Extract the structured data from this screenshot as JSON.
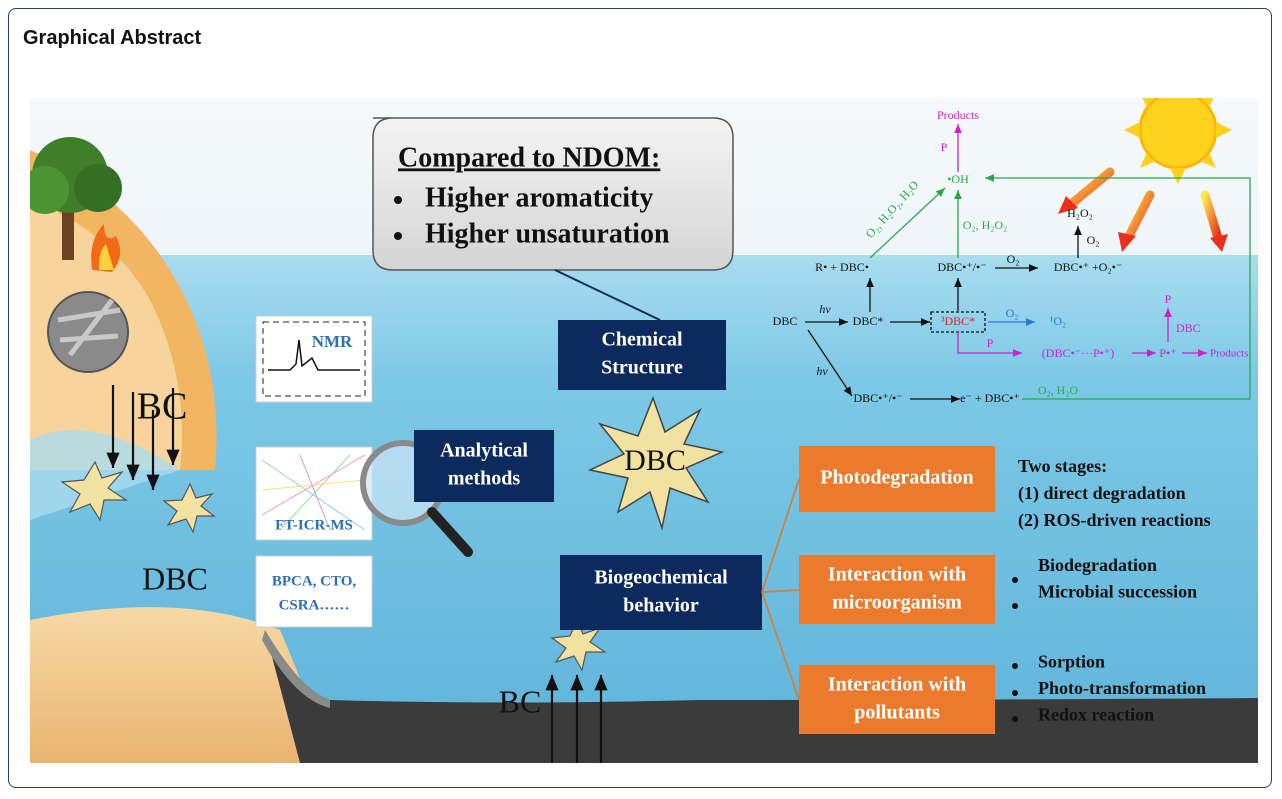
{
  "header": {
    "title": "Graphical Abstract"
  },
  "figure": {
    "comparison": {
      "heading": "Compared to NDOM:",
      "items": [
        "Higher aromaticity",
        "Higher unsaturation"
      ]
    },
    "left_labels": {
      "bc_top": "BC",
      "dbc": "DBC",
      "bc_bottom": "BC"
    },
    "analysis_panels": {
      "nmr": "NMR",
      "ft_icr_ms": "FT-ICR-MS",
      "other": [
        "BPCA, CTO,",
        "CSRA……"
      ]
    },
    "analytical_methods": [
      "Analytical",
      "methods"
    ],
    "center_star": "DBC",
    "chemical_structure": [
      "Chemical",
      "Structure"
    ],
    "biogeochemical_behavior": [
      "Biogeochemical",
      "behavior"
    ],
    "behaviors": [
      {
        "label": [
          "Photodegradation"
        ],
        "notes_title": "Two stages:",
        "notes": [
          "(1) direct degradation",
          "(2) ROS-driven reactions"
        ]
      },
      {
        "label": [
          "Interaction with",
          "microorganism"
        ],
        "notes": [
          "Biodegradation",
          "Microbial succession"
        ]
      },
      {
        "label": [
          "Interaction with",
          "pollutants"
        ],
        "notes": [
          "Sorption",
          "Photo-transformation",
          "Redox reaction"
        ]
      }
    ],
    "reaction_scheme": [
      "Products",
      "P",
      "•OH",
      "O₂, H₂O₂, H₂O",
      "O₂, H₂O₂",
      "H₂O₂",
      "O₂",
      "R• + DBC•",
      "DBC•⁺/•⁻",
      "O₂",
      "DBC•⁺ +O₂•⁻",
      "DBC",
      "hv",
      "DBC*",
      "³DBC*",
      "O₂",
      "¹O₂",
      "P",
      "(DBC•⁻···P•⁺)",
      "P•⁺",
      "Products",
      "P",
      "DBC",
      "hv",
      "DBC•⁺/•⁻",
      "e⁻ + DBC•⁺",
      "O₂, H₂O"
    ]
  }
}
